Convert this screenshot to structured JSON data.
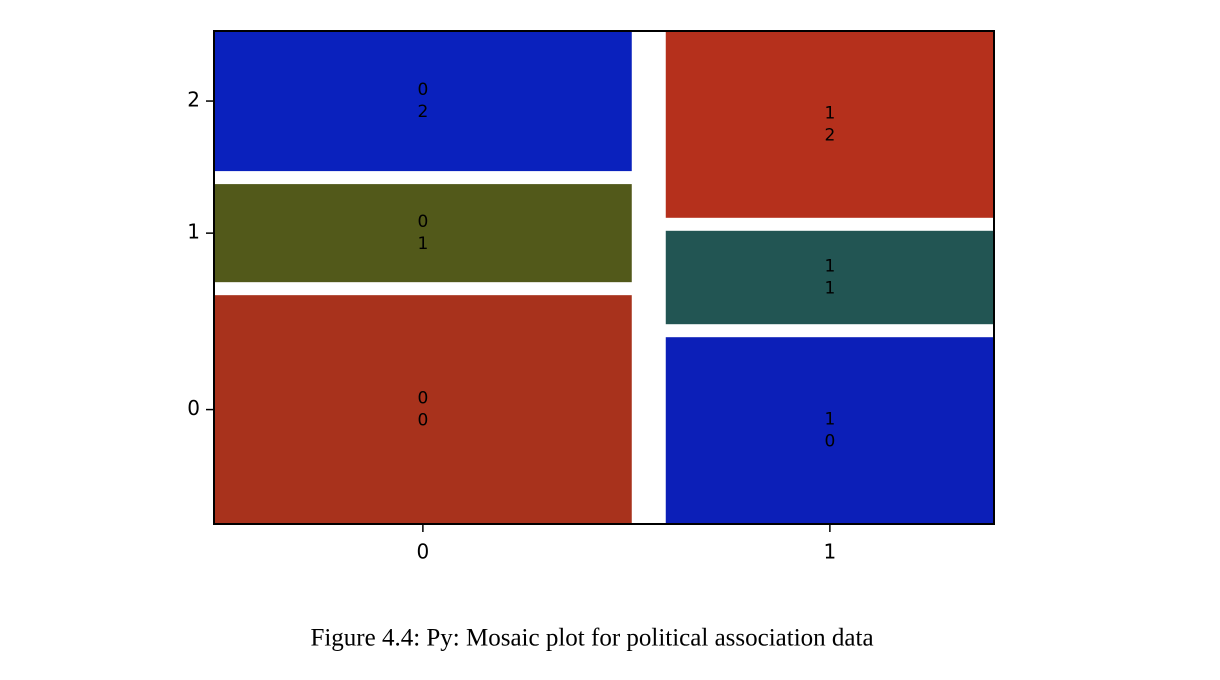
{
  "chart_data": {
    "type": "mosaic",
    "caption": "Figure 4.4: Py: Mosaic plot for political association data",
    "y_categories": [
      "0",
      "1",
      "2"
    ],
    "columns": [
      {
        "label": "0",
        "width": 0.56,
        "tiles": [
          {
            "value": 0.49,
            "label": [
              "0",
              "0"
            ],
            "color": "#a8321c"
          },
          {
            "value": 0.21,
            "label": [
              "0",
              "1"
            ],
            "color": "#52591a"
          },
          {
            "value": 0.3,
            "label": [
              "0",
              "2"
            ],
            "color": "#0a21bd"
          }
        ]
      },
      {
        "label": "1",
        "width": 0.44,
        "tiles": [
          {
            "value": 0.4,
            "label": [
              "1",
              "0"
            ],
            "color": "#0c1fb8"
          },
          {
            "value": 0.2,
            "label": [
              "1",
              "1"
            ],
            "color": "#225553"
          },
          {
            "value": 0.4,
            "label": [
              "1",
              "2"
            ],
            "color": "#b5301c"
          }
        ]
      }
    ]
  }
}
